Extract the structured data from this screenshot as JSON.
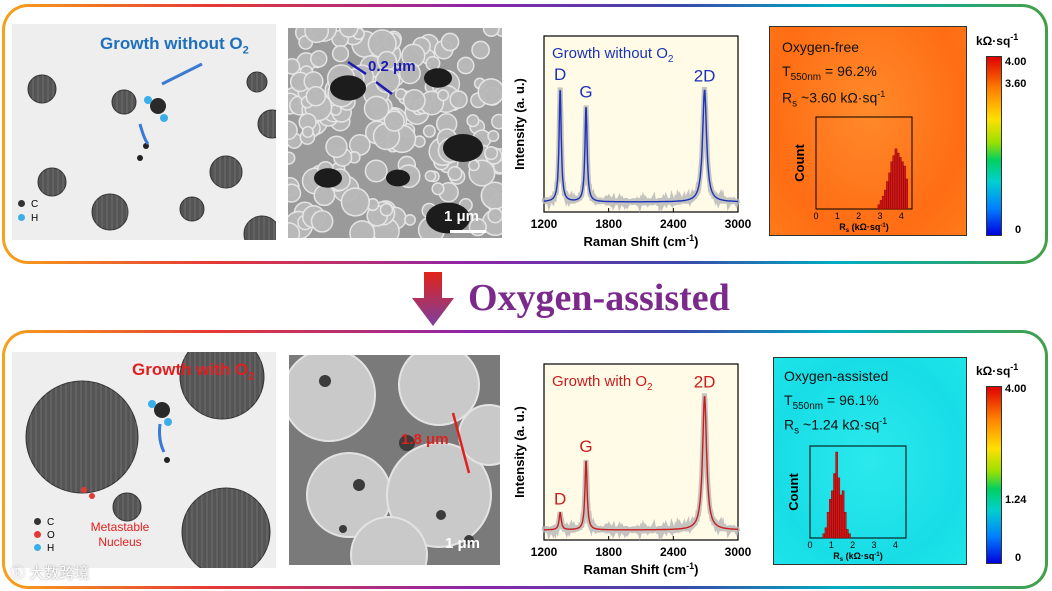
{
  "center_arrow_label": "Oxygen-assisted",
  "watermark": "大数跨境",
  "top": {
    "schematic_title": "Growth without O",
    "schematic_title_sub": "2",
    "legend": [
      "C",
      "H"
    ],
    "sem_feature_label": "0.2 μm",
    "sem_scale_label": "1 μm",
    "raman_title": "Growth without O",
    "raman_title_sub": "2",
    "raman_peaks": [
      "D",
      "G",
      "2D"
    ],
    "map_title": "Oxygen-free",
    "map_t": "T",
    "map_t_sub": "550nm",
    "map_t_val": " = 96.2%",
    "map_r": "R",
    "map_r_sub": "s",
    "map_r_val": " ~3.60 kΩ·sq",
    "map_r_sup": "-1",
    "colorbar_title": "kΩ·sq",
    "colorbar_title_sup": "-1",
    "colorbar_ticks": [
      "4.00",
      "3.60",
      "0"
    ],
    "colors": {
      "accent": "#1f6fbf",
      "map_fill": "#ff7a1a"
    }
  },
  "bottom": {
    "schematic_title": "Growth with O",
    "schematic_title_sub": "2",
    "legend": [
      "C",
      "O",
      "H"
    ],
    "nucleus_label": "Metastable Nucleus",
    "sem_feature_label": "1.8 μm",
    "sem_scale_label": "1 μm",
    "raman_title": "Growth with O",
    "raman_title_sub": "2",
    "raman_peaks": [
      "D",
      "G",
      "2D"
    ],
    "map_title": "Oxygen-assisted",
    "map_t": "T",
    "map_t_sub": "550nm",
    "map_t_val": " = 96.1%",
    "map_r": "R",
    "map_r_sub": "s",
    "map_r_val": " ~1.24 kΩ·sq",
    "map_r_sup": "-1",
    "colorbar_title": "kΩ·sq",
    "colorbar_title_sup": "-1",
    "colorbar_ticks": [
      "4.00",
      "1.24",
      "0"
    ],
    "colors": {
      "accent": "#e02020",
      "map_fill": "#1de5e8"
    }
  },
  "chart_data": [
    {
      "type": "line",
      "panel": "top-raman",
      "title": "Growth without O2",
      "xlabel": "Raman Shift (cm-1)",
      "ylabel": "Intensity (a. u.)",
      "xlim": [
        1200,
        3000
      ],
      "x_ticks": [
        "1200",
        "1800",
        "2400",
        "3000"
      ],
      "peaks": [
        {
          "label": "D",
          "x": 1350,
          "height": 0.78
        },
        {
          "label": "G",
          "x": 1590,
          "height": 0.66
        },
        {
          "label": "2D",
          "x": 2690,
          "height": 0.77
        }
      ],
      "color": "#1a33b8"
    },
    {
      "type": "bar",
      "panel": "top-histogram",
      "xlabel": "Rs (kΩ·sq-1)",
      "ylabel": "Count",
      "xlim": [
        0,
        4.5
      ],
      "x_ticks": [
        "0",
        "1",
        "2",
        "3",
        "4"
      ],
      "bins": [
        2.9,
        3.0,
        3.1,
        3.2,
        3.3,
        3.4,
        3.5,
        3.6,
        3.7,
        3.8,
        3.9,
        4.0,
        4.1,
        4.2
      ],
      "values": [
        0.05,
        0.1,
        0.15,
        0.22,
        0.32,
        0.42,
        0.55,
        0.62,
        0.7,
        0.65,
        0.6,
        0.55,
        0.5,
        0.35
      ],
      "color": "#d01818"
    },
    {
      "type": "line",
      "panel": "bottom-raman",
      "title": "Growth with O2",
      "xlabel": "Raman Shift (cm-1)",
      "ylabel": "Intensity (a. u.)",
      "xlim": [
        1200,
        3000
      ],
      "x_ticks": [
        "1200",
        "1800",
        "2400",
        "3000"
      ],
      "peaks": [
        {
          "label": "D",
          "x": 1350,
          "height": 0.12
        },
        {
          "label": "G",
          "x": 1590,
          "height": 0.48
        },
        {
          "label": "2D",
          "x": 2690,
          "height": 0.92
        }
      ],
      "color": "#c81d1d"
    },
    {
      "type": "bar",
      "panel": "bottom-histogram",
      "xlabel": "Rs (kΩ·sq-1)",
      "ylabel": "Count",
      "xlim": [
        0,
        4.5
      ],
      "x_ticks": [
        "0",
        "1",
        "2",
        "3",
        "4"
      ],
      "bins": [
        0.6,
        0.7,
        0.8,
        0.9,
        1.0,
        1.1,
        1.2,
        1.3,
        1.4,
        1.5,
        1.6,
        1.7,
        1.8
      ],
      "values": [
        0.05,
        0.12,
        0.3,
        0.45,
        0.55,
        0.75,
        1.0,
        0.7,
        0.5,
        0.55,
        0.3,
        0.1,
        0.05
      ],
      "color": "#d01818"
    }
  ]
}
